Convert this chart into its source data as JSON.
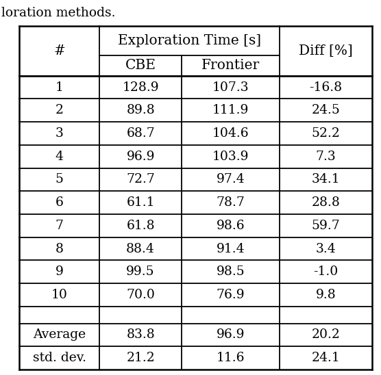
{
  "caption": "loration methods.",
  "rows": [
    [
      "1",
      "128.9",
      "107.3",
      "-16.8"
    ],
    [
      "2",
      "89.8",
      "111.9",
      "24.5"
    ],
    [
      "3",
      "68.7",
      "104.6",
      "52.2"
    ],
    [
      "4",
      "96.9",
      "103.9",
      "7.3"
    ],
    [
      "5",
      "72.7",
      "97.4",
      "34.1"
    ],
    [
      "6",
      "61.1",
      "78.7",
      "28.8"
    ],
    [
      "7",
      "61.8",
      "98.6",
      "59.7"
    ],
    [
      "8",
      "88.4",
      "91.4",
      "3.4"
    ],
    [
      "9",
      "99.5",
      "98.5",
      "-1.0"
    ],
    [
      "10",
      "70.0",
      "76.9",
      "9.8"
    ]
  ],
  "summary_rows": [
    [
      "Average",
      "83.8",
      "96.9",
      "20.2"
    ],
    [
      "std. dev.",
      "21.2",
      "11.6",
      "24.1"
    ]
  ],
  "font_size": 13.5,
  "text_color": "#000000",
  "bg_color": "#ffffff",
  "line_color": "#000000",
  "fig_width": 5.56,
  "fig_height": 5.48,
  "dpi": 100
}
